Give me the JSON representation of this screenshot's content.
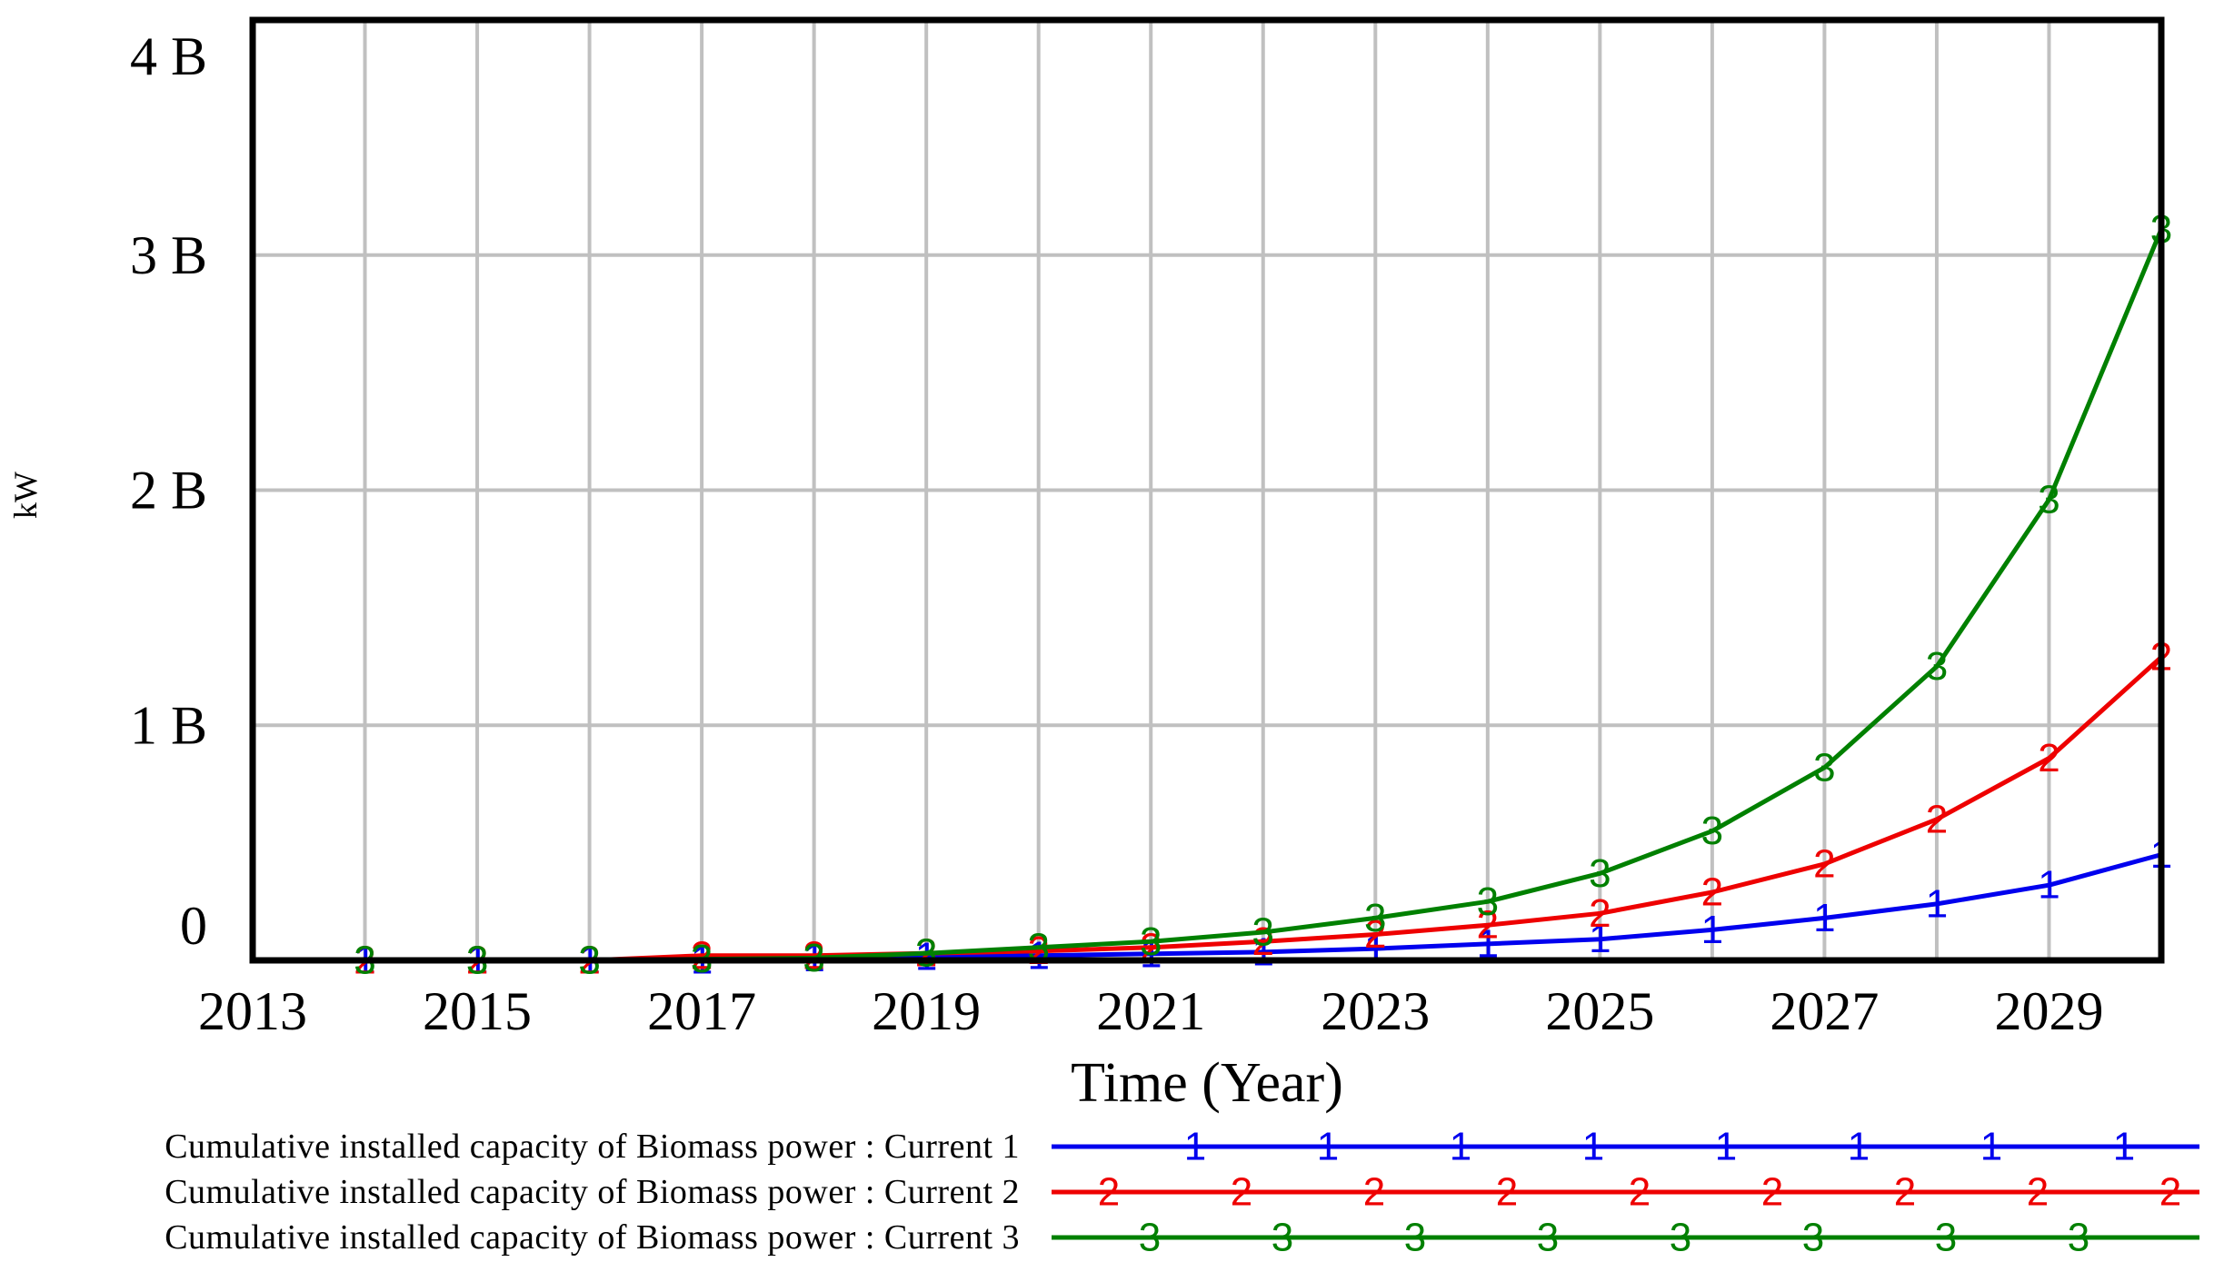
{
  "chart_data": {
    "type": "line",
    "title": "",
    "xlabel": "Time (Year)",
    "ylabel": "kW",
    "xlim": [
      2013,
      2030
    ],
    "ylim": [
      0,
      4000000000
    ],
    "x_tick_values": [
      2013,
      2015,
      2017,
      2019,
      2021,
      2023,
      2025,
      2027,
      2029
    ],
    "x_tick_labels": [
      "2013",
      "2015",
      "2017",
      "2019",
      "2021",
      "2023",
      "2025",
      "2027",
      "2029"
    ],
    "y_tick_values": [
      0,
      1000000000,
      2000000000,
      3000000000,
      4000000000
    ],
    "y_tick_labels": [
      "0",
      "1 B",
      "2 B",
      "3 B",
      "4 B"
    ],
    "grid": true,
    "legend_position": "bottom",
    "x": [
      2013,
      2014,
      2015,
      2016,
      2017,
      2018,
      2019,
      2020,
      2021,
      2022,
      2023,
      2024,
      2025,
      2026,
      2027,
      2028,
      2029,
      2030
    ],
    "series": [
      {
        "name": "Cumulative installed capacity of Biomass power : Current 1",
        "marker": "1",
        "color": "#0000ee",
        "values": [
          0,
          0,
          0,
          0,
          0,
          10000000,
          15000000,
          20000000,
          28000000,
          35000000,
          50000000,
          70000000,
          90000000,
          130000000,
          180000000,
          240000000,
          320000000,
          450000000
        ]
      },
      {
        "name": "Cumulative installed capacity of Biomass power : Current 2",
        "marker": "2",
        "color": "#ee0000",
        "values": [
          0,
          0,
          0,
          0,
          20000000,
          20000000,
          30000000,
          40000000,
          55000000,
          80000000,
          110000000,
          150000000,
          200000000,
          290000000,
          410000000,
          600000000,
          860000000,
          1290000000
        ]
      },
      {
        "name": "Cumulative installed capacity of Biomass power : Current 3",
        "marker": "3",
        "color": "#008000",
        "values": [
          0,
          0,
          0,
          0,
          5000000,
          10000000,
          30000000,
          55000000,
          80000000,
          120000000,
          180000000,
          250000000,
          370000000,
          550000000,
          820000000,
          1250000000,
          1960000000,
          3110000000
        ]
      }
    ]
  }
}
